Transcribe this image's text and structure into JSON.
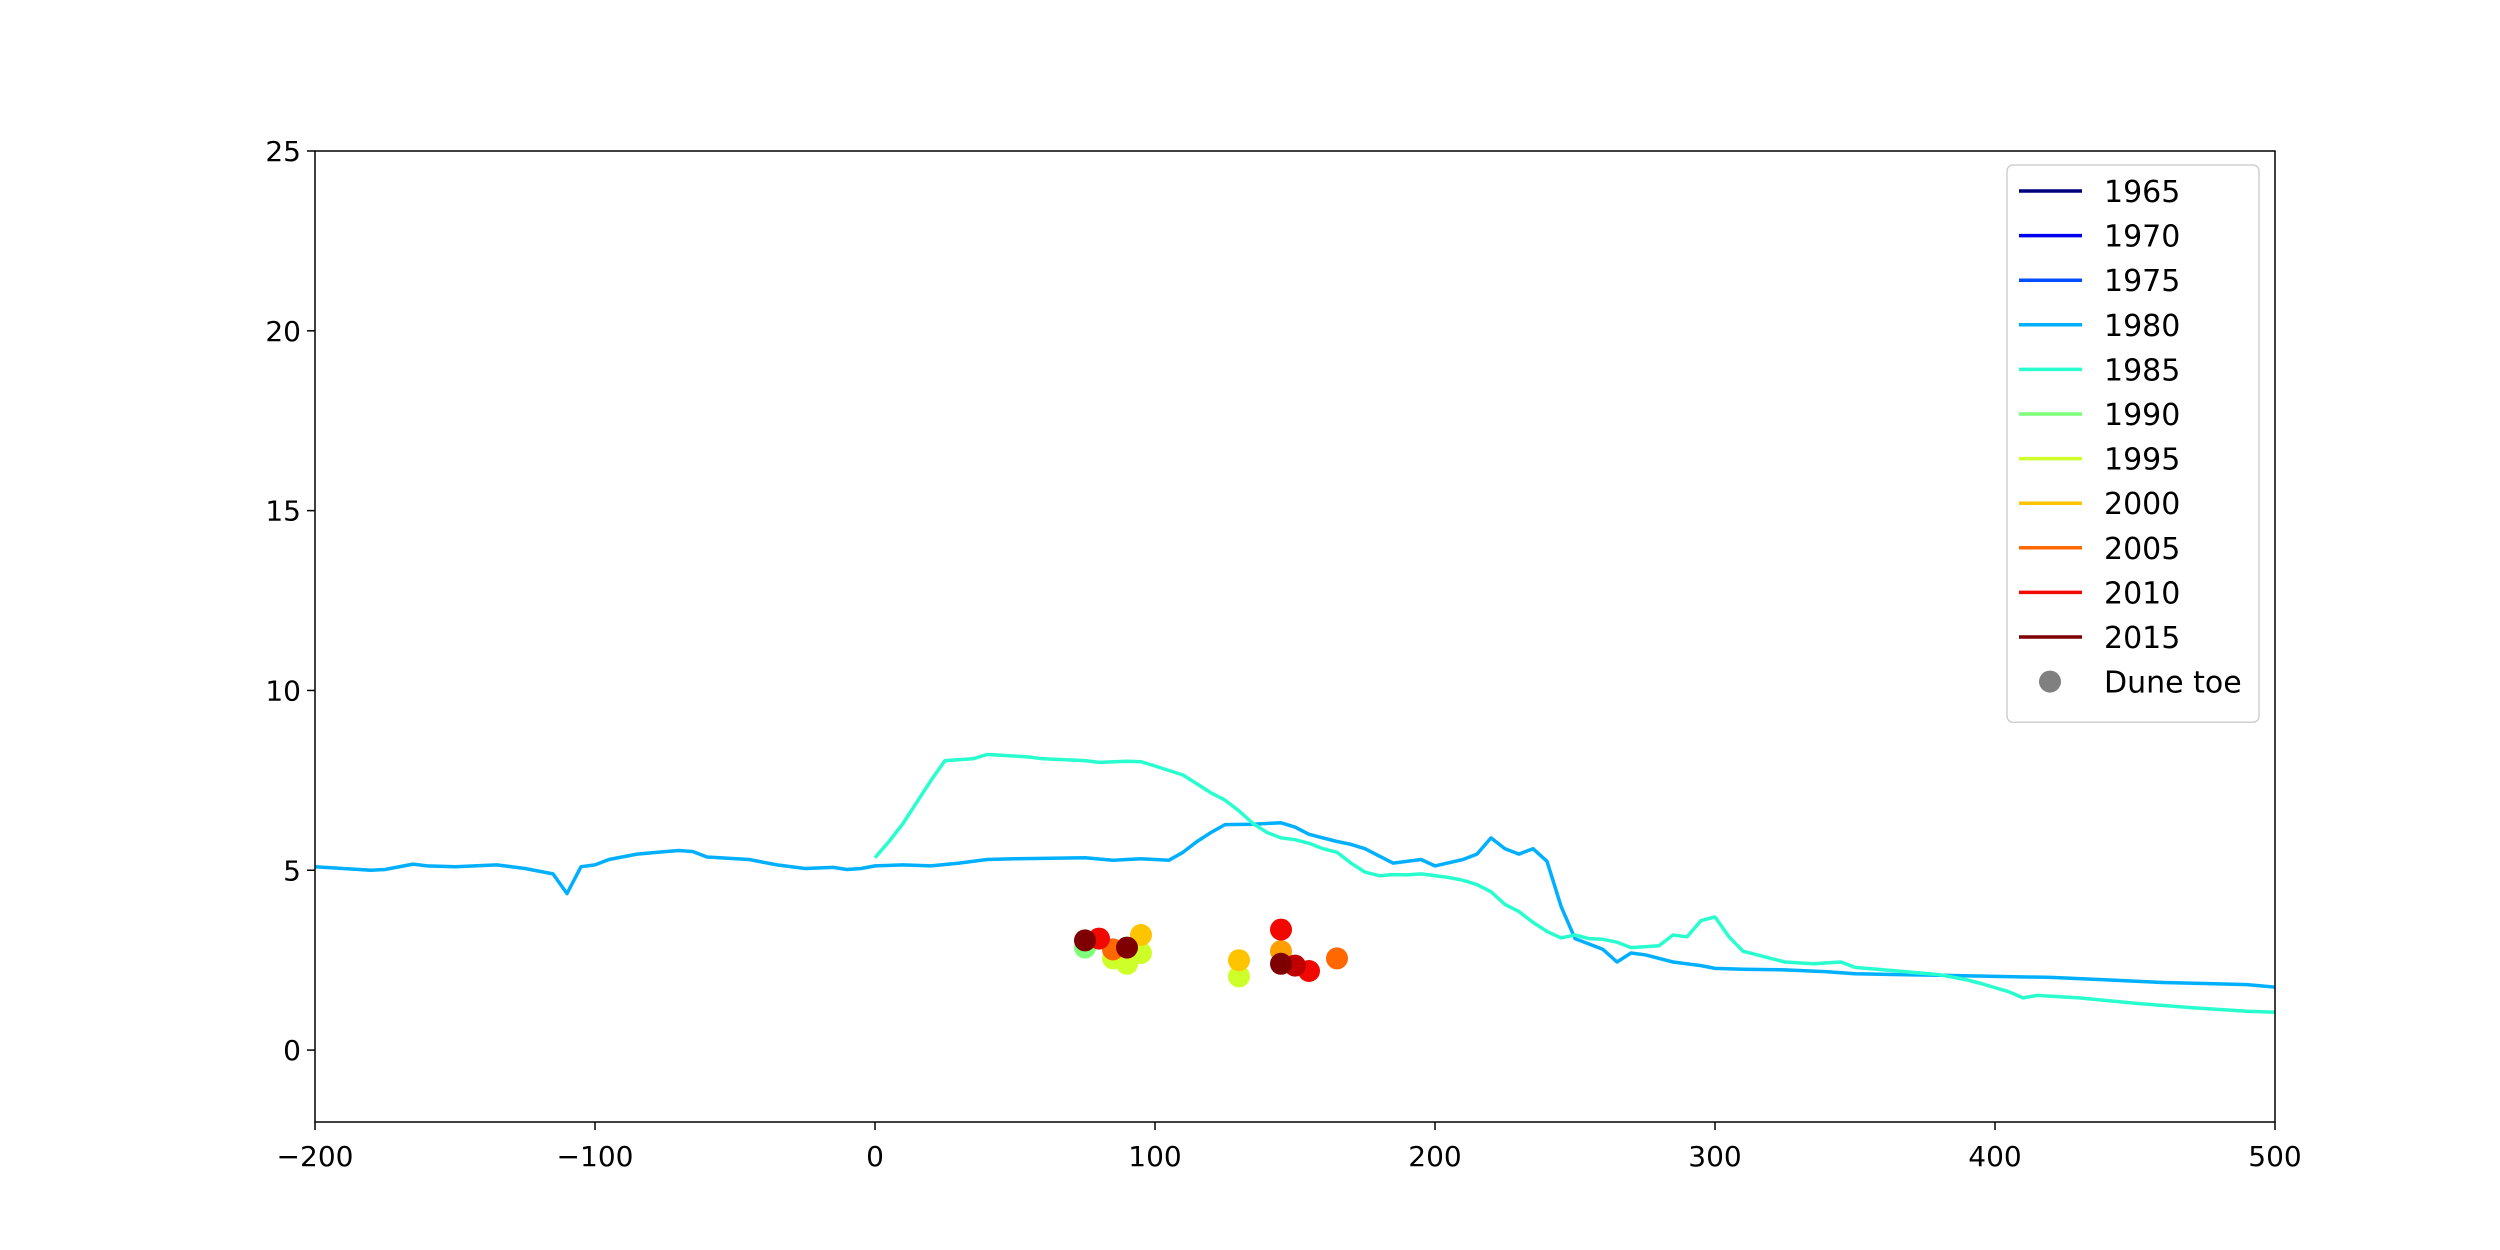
{
  "chart_data": {
    "type": "line",
    "title": "",
    "xlabel": "",
    "ylabel": "",
    "xlim": [
      -200,
      500
    ],
    "ylim": [
      -2,
      25
    ],
    "x_ticks": [
      -200,
      -100,
      0,
      100,
      200,
      300,
      400,
      500
    ],
    "x_tick_labels": [
      "−200",
      "−100",
      "0",
      "100",
      "200",
      "300",
      "400",
      "500"
    ],
    "y_ticks": [
      0,
      5,
      10,
      15,
      20,
      25
    ],
    "y_tick_labels": [
      "0",
      "5",
      "10",
      "15",
      "20",
      "25"
    ],
    "grid": false,
    "legend_position": "upper right",
    "series": [
      {
        "name": "1965",
        "color": "#00007f",
        "points": []
      },
      {
        "name": "1970",
        "color": "#0000f1",
        "points": []
      },
      {
        "name": "1975",
        "color": "#004cff",
        "points": []
      },
      {
        "name": "1980",
        "color": "#00b0ff",
        "points": [
          [
            -200,
            5.1
          ],
          [
            -190,
            5.05
          ],
          [
            -180,
            5.0
          ],
          [
            -175,
            5.02
          ],
          [
            -165,
            5.17
          ],
          [
            -160,
            5.12
          ],
          [
            -150,
            5.1
          ],
          [
            -135,
            5.15
          ],
          [
            -125,
            5.05
          ],
          [
            -115,
            4.9
          ],
          [
            -110,
            4.35
          ],
          [
            -105,
            5.1
          ],
          [
            -100,
            5.15
          ],
          [
            -95,
            5.3
          ],
          [
            -85,
            5.45
          ],
          [
            -75,
            5.52
          ],
          [
            -70,
            5.55
          ],
          [
            -65,
            5.52
          ],
          [
            -60,
            5.37
          ],
          [
            -45,
            5.3
          ],
          [
            -35,
            5.15
          ],
          [
            -25,
            5.05
          ],
          [
            -15,
            5.08
          ],
          [
            -10,
            5.02
          ],
          [
            -5,
            5.05
          ],
          [
            0,
            5.12
          ],
          [
            10,
            5.15
          ],
          [
            20,
            5.12
          ],
          [
            30,
            5.2
          ],
          [
            40,
            5.3
          ],
          [
            50,
            5.32
          ],
          [
            60,
            5.33
          ],
          [
            75,
            5.35
          ],
          [
            85,
            5.28
          ],
          [
            95,
            5.32
          ],
          [
            105,
            5.28
          ],
          [
            110,
            5.5
          ],
          [
            115,
            5.8
          ],
          [
            120,
            6.05
          ],
          [
            125,
            6.27
          ],
          [
            135,
            6.28
          ],
          [
            145,
            6.32
          ],
          [
            150,
            6.2
          ],
          [
            155,
            6.0
          ],
          [
            165,
            5.8
          ],
          [
            170,
            5.72
          ],
          [
            175,
            5.6
          ],
          [
            180,
            5.4
          ],
          [
            185,
            5.2
          ],
          [
            195,
            5.3
          ],
          [
            200,
            5.12
          ],
          [
            210,
            5.3
          ],
          [
            215,
            5.45
          ],
          [
            220,
            5.9
          ],
          [
            225,
            5.6
          ],
          [
            230,
            5.45
          ],
          [
            235,
            5.6
          ],
          [
            240,
            5.25
          ],
          [
            245,
            4.0
          ],
          [
            250,
            3.1
          ],
          [
            255,
            2.95
          ],
          [
            260,
            2.8
          ],
          [
            265,
            2.45
          ],
          [
            270,
            2.7
          ],
          [
            275,
            2.65
          ],
          [
            285,
            2.45
          ],
          [
            295,
            2.35
          ],
          [
            300,
            2.27
          ],
          [
            310,
            2.25
          ],
          [
            325,
            2.23
          ],
          [
            340,
            2.18
          ],
          [
            350,
            2.12
          ],
          [
            380,
            2.08
          ],
          [
            400,
            2.05
          ],
          [
            420,
            2.02
          ],
          [
            440,
            1.95
          ],
          [
            460,
            1.88
          ],
          [
            480,
            1.84
          ],
          [
            490,
            1.82
          ],
          [
            500,
            1.75
          ]
        ]
      },
      {
        "name": "1985",
        "color": "#29ffce",
        "points": [
          [
            0,
            5.35
          ],
          [
            5,
            5.8
          ],
          [
            10,
            6.3
          ],
          [
            15,
            6.9
          ],
          [
            20,
            7.5
          ],
          [
            25,
            8.05
          ],
          [
            35,
            8.1
          ],
          [
            40,
            8.22
          ],
          [
            45,
            8.2
          ],
          [
            55,
            8.15
          ],
          [
            60,
            8.1
          ],
          [
            75,
            8.05
          ],
          [
            80,
            8.0
          ],
          [
            90,
            8.03
          ],
          [
            95,
            8.02
          ],
          [
            100,
            7.9
          ],
          [
            110,
            7.65
          ],
          [
            115,
            7.4
          ],
          [
            120,
            7.15
          ],
          [
            125,
            6.95
          ],
          [
            130,
            6.65
          ],
          [
            135,
            6.3
          ],
          [
            140,
            6.05
          ],
          [
            145,
            5.9
          ],
          [
            150,
            5.85
          ],
          [
            155,
            5.75
          ],
          [
            160,
            5.6
          ],
          [
            165,
            5.5
          ],
          [
            170,
            5.2
          ],
          [
            175,
            4.95
          ],
          [
            180,
            4.85
          ],
          [
            185,
            4.88
          ],
          [
            190,
            4.87
          ],
          [
            195,
            4.9
          ],
          [
            205,
            4.8
          ],
          [
            210,
            4.72
          ],
          [
            215,
            4.6
          ],
          [
            220,
            4.4
          ],
          [
            225,
            4.05
          ],
          [
            230,
            3.85
          ],
          [
            235,
            3.55
          ],
          [
            240,
            3.3
          ],
          [
            245,
            3.12
          ],
          [
            250,
            3.2
          ],
          [
            255,
            3.1
          ],
          [
            260,
            3.08
          ],
          [
            265,
            3.0
          ],
          [
            270,
            2.85
          ],
          [
            280,
            2.9
          ],
          [
            285,
            3.2
          ],
          [
            290,
            3.15
          ],
          [
            295,
            3.6
          ],
          [
            300,
            3.7
          ],
          [
            305,
            3.15
          ],
          [
            310,
            2.75
          ],
          [
            320,
            2.55
          ],
          [
            325,
            2.45
          ],
          [
            335,
            2.4
          ],
          [
            345,
            2.45
          ],
          [
            350,
            2.3
          ],
          [
            365,
            2.2
          ],
          [
            380,
            2.1
          ],
          [
            390,
            1.95
          ],
          [
            395,
            1.85
          ],
          [
            405,
            1.62
          ],
          [
            410,
            1.45
          ],
          [
            415,
            1.52
          ],
          [
            430,
            1.45
          ],
          [
            450,
            1.3
          ],
          [
            470,
            1.18
          ],
          [
            490,
            1.08
          ],
          [
            500,
            1.05
          ]
        ]
      },
      {
        "name": "1990",
        "color": "#7dff7a",
        "points": []
      },
      {
        "name": "1995",
        "color": "#ceff29",
        "points": []
      },
      {
        "name": "2000",
        "color": "#ffc400",
        "points": []
      },
      {
        "name": "2005",
        "color": "#ff6800",
        "points": []
      },
      {
        "name": "2010",
        "color": "#f10800",
        "points": []
      },
      {
        "name": "2015",
        "color": "#7f0000",
        "points": []
      }
    ],
    "dune_toe": {
      "name": "Dune toe",
      "legend_color": "#808080",
      "points": [
        {
          "x": 75,
          "y": 2.85,
          "color": "#7dff7a"
        },
        {
          "x": 90,
          "y": 2.4,
          "color": "#ceff29"
        },
        {
          "x": 95,
          "y": 2.7,
          "color": "#ceff29"
        },
        {
          "x": 85,
          "y": 2.55,
          "color": "#ceff29"
        },
        {
          "x": 130,
          "y": 2.05,
          "color": "#ceff29"
        },
        {
          "x": 95,
          "y": 3.2,
          "color": "#ffc400"
        },
        {
          "x": 130,
          "y": 2.5,
          "color": "#ffc400"
        },
        {
          "x": 145,
          "y": 2.75,
          "color": "#ffa000"
        },
        {
          "x": 85,
          "y": 2.8,
          "color": "#ff6800"
        },
        {
          "x": 165,
          "y": 2.55,
          "color": "#ff6800"
        },
        {
          "x": 80,
          "y": 3.1,
          "color": "#f10800"
        },
        {
          "x": 145,
          "y": 3.35,
          "color": "#f10800"
        },
        {
          "x": 155,
          "y": 2.2,
          "color": "#f10800"
        },
        {
          "x": 150,
          "y": 2.35,
          "color": "#c00000"
        },
        {
          "x": 75,
          "y": 3.05,
          "color": "#7f0000"
        },
        {
          "x": 90,
          "y": 2.85,
          "color": "#7f0000"
        },
        {
          "x": 145,
          "y": 2.4,
          "color": "#7f0000"
        }
      ]
    }
  }
}
